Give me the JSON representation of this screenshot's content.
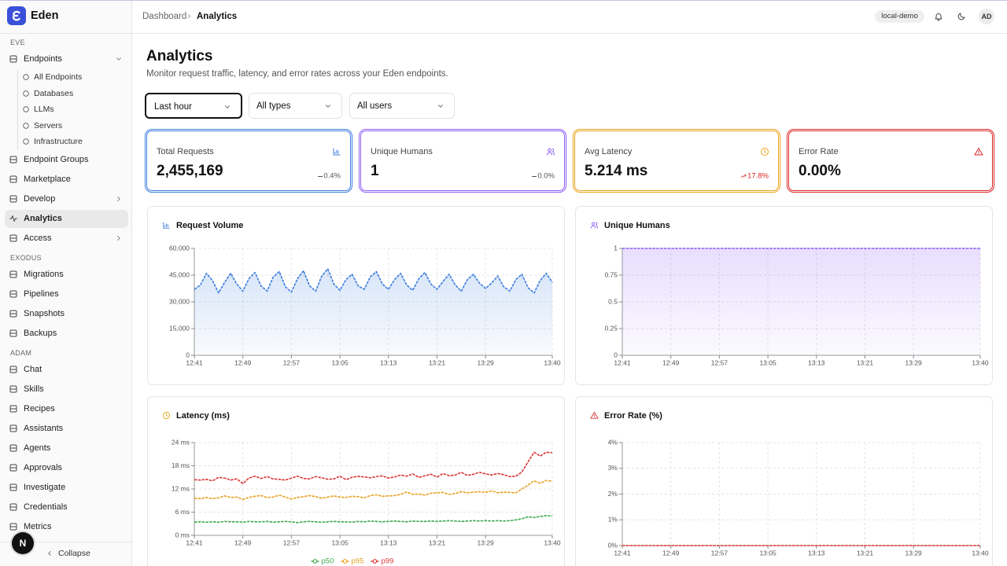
{
  "sidebar": {
    "brand": "Eden",
    "sections": [
      {
        "label": "EVE",
        "items": [
          {
            "label": "Endpoints",
            "expanded": true,
            "children": [
              "All Endpoints",
              "Databases",
              "LLMs",
              "Servers",
              "Infrastructure"
            ]
          },
          {
            "label": "Endpoint Groups"
          },
          {
            "label": "Marketplace"
          },
          {
            "label": "Develop",
            "submenu": true
          },
          {
            "label": "Analytics",
            "active": true
          },
          {
            "label": "Access",
            "submenu": true
          }
        ]
      },
      {
        "label": "EXODUS",
        "items": [
          {
            "label": "Migrations"
          },
          {
            "label": "Pipelines"
          },
          {
            "label": "Snapshots"
          },
          {
            "label": "Backups"
          }
        ]
      },
      {
        "label": "ADAM",
        "items": [
          {
            "label": "Chat"
          },
          {
            "label": "Skills"
          },
          {
            "label": "Recipes"
          },
          {
            "label": "Assistants"
          },
          {
            "label": "Agents"
          },
          {
            "label": "Approvals"
          },
          {
            "label": "Investigate"
          },
          {
            "label": "Credentials"
          },
          {
            "label": "Metrics"
          }
        ]
      }
    ],
    "collapse": "Collapse",
    "dev_badge": "N"
  },
  "header": {
    "breadcrumb": [
      "Dashboard",
      "Analytics"
    ],
    "environment": "local-demo",
    "avatar": "AD"
  },
  "page": {
    "title": "Analytics",
    "subtitle": "Monitor request traffic, latency, and error rates across your Eden endpoints."
  },
  "filters": [
    "Last hour",
    "All types",
    "All users"
  ],
  "stats": [
    {
      "label": "Total Requests",
      "value": "2,455,169",
      "change": "0.4%",
      "trend": "flat",
      "color": "#3b7ddd"
    },
    {
      "label": "Unique Humans",
      "value": "1",
      "change": "0.0%",
      "trend": "flat",
      "color": "#8b5cf6"
    },
    {
      "label": "Avg Latency",
      "value": "5.214 ms",
      "change": "17.8%",
      "trend": "up",
      "color": "#e8a317"
    },
    {
      "label": "Error Rate",
      "value": "0.00%",
      "color": "#dc2626"
    }
  ],
  "chart_data": [
    {
      "type": "area",
      "title": "Request Volume",
      "color": "#3b7ddd",
      "grid": true,
      "categories": [
        "12:41",
        null,
        null,
        null,
        null,
        null,
        null,
        null,
        "12:49",
        null,
        null,
        null,
        null,
        null,
        null,
        null,
        "12:57",
        null,
        null,
        null,
        null,
        null,
        null,
        null,
        "13:05",
        null,
        null,
        null,
        null,
        null,
        null,
        null,
        "13:13",
        null,
        null,
        null,
        null,
        null,
        null,
        null,
        "13:21",
        null,
        null,
        null,
        null,
        null,
        null,
        null,
        "13:29",
        null,
        null,
        null,
        null,
        null,
        null,
        null,
        null,
        null,
        null,
        "13:40"
      ],
      "values": [
        37000,
        39500,
        46000,
        42000,
        35000,
        41000,
        46000,
        40000,
        36000,
        43000,
        46500,
        39000,
        36000,
        44000,
        47000,
        38500,
        35500,
        43000,
        47500,
        39000,
        36000,
        44500,
        48500,
        40000,
        36500,
        42500,
        45500,
        39000,
        37000,
        44000,
        47000,
        40000,
        37000,
        42500,
        46000,
        39500,
        36500,
        43000,
        46500,
        40000,
        37000,
        41500,
        45500,
        39500,
        36000,
        42500,
        45500,
        40500,
        37500,
        40500,
        44500,
        38500,
        36000,
        42500,
        45500,
        38000,
        35000,
        42000,
        46000,
        41000
      ],
      "ylim": [
        0,
        60000
      ],
      "yticks": [
        0,
        {
          "value": 15000,
          "label": "15,000"
        },
        {
          "value": 30000,
          "label": "30,000"
        },
        {
          "value": 45000,
          "label": "45,000"
        },
        {
          "value": 60000,
          "label": "60,000"
        }
      ]
    },
    {
      "type": "area",
      "title": "Unique Humans",
      "color": "#8b5cf6",
      "grid": true,
      "categories": [
        "12:41",
        null,
        null,
        null,
        null,
        null,
        null,
        null,
        "12:49",
        null,
        null,
        null,
        null,
        null,
        null,
        null,
        "12:57",
        null,
        null,
        null,
        null,
        null,
        null,
        null,
        "13:05",
        null,
        null,
        null,
        null,
        null,
        null,
        null,
        "13:13",
        null,
        null,
        null,
        null,
        null,
        null,
        null,
        "13:21",
        null,
        null,
        null,
        null,
        null,
        null,
        null,
        "13:29",
        null,
        null,
        null,
        null,
        null,
        null,
        null,
        null,
        null,
        null,
        "13:40"
      ],
      "values": [
        1,
        1,
        1,
        1,
        1,
        1,
        1,
        1,
        1,
        1,
        1,
        1,
        1,
        1,
        1,
        1,
        1,
        1,
        1,
        1,
        1,
        1,
        1,
        1,
        1,
        1,
        1,
        1,
        1,
        1,
        1,
        1,
        1,
        1,
        1,
        1,
        1,
        1,
        1,
        1,
        1,
        1,
        1,
        1,
        1,
        1,
        1,
        1,
        1,
        1,
        1,
        1,
        1,
        1,
        1,
        1,
        1,
        1,
        1,
        1
      ],
      "ylim": [
        0,
        1
      ],
      "yticks": [
        0,
        0.25,
        0.5,
        0.75,
        1
      ]
    },
    {
      "type": "line",
      "title": "Latency (ms)",
      "grid": true,
      "legend": "bottom",
      "categories": [
        "12:41",
        null,
        null,
        null,
        null,
        null,
        null,
        null,
        "12:49",
        null,
        null,
        null,
        null,
        null,
        null,
        null,
        "12:57",
        null,
        null,
        null,
        null,
        null,
        null,
        null,
        "13:05",
        null,
        null,
        null,
        null,
        null,
        null,
        null,
        "13:13",
        null,
        null,
        null,
        null,
        null,
        null,
        null,
        "13:21",
        null,
        null,
        null,
        null,
        null,
        null,
        null,
        "13:29",
        null,
        null,
        null,
        null,
        null,
        null,
        null,
        null,
        null,
        null,
        "13:40"
      ],
      "series": [
        {
          "name": "p50",
          "color": "#3aa84a",
          "values": [
            3.4,
            3.5,
            3.4,
            3.5,
            3.4,
            3.6,
            3.5,
            3.5,
            3.4,
            3.6,
            3.5,
            3.5,
            3.6,
            3.4,
            3.5,
            3.6,
            3.5,
            3.3,
            3.5,
            3.6,
            3.5,
            3.4,
            3.5,
            3.6,
            3.5,
            3.5,
            3.4,
            3.6,
            3.5,
            3.7,
            3.6,
            3.5,
            3.6,
            3.7,
            3.6,
            3.5,
            3.7,
            3.6,
            3.6,
            3.7,
            3.6,
            3.7,
            3.8,
            3.7,
            3.6,
            3.7,
            3.8,
            3.7,
            3.8,
            3.7,
            3.8,
            3.7,
            3.8,
            4.0,
            4.3,
            4.8,
            4.6,
            4.9,
            5.1,
            5.0
          ]
        },
        {
          "name": "p95",
          "color": "#e8a020",
          "values": [
            9.6,
            9.5,
            9.8,
            9.5,
            9.7,
            10.2,
            9.8,
            9.9,
            9.3,
            9.8,
            10.1,
            10.3,
            9.8,
            9.9,
            10.4,
            9.9,
            9.4,
            9.8,
            10.0,
            10.3,
            10.0,
            9.6,
            9.9,
            10.2,
            9.9,
            9.8,
            10.1,
            10.0,
            9.7,
            10.3,
            10.5,
            10.1,
            10.2,
            10.3,
            10.6,
            11.2,
            10.6,
            10.7,
            10.4,
            10.9,
            11.0,
            11.1,
            10.6,
            10.8,
            11.3,
            11.0,
            11.2,
            11.3,
            11.1,
            11.5,
            11.0,
            11.2,
            11.1,
            11.0,
            12.0,
            13.0,
            14.1,
            13.5,
            14.2,
            14.0
          ]
        },
        {
          "name": "p99",
          "color": "#dc3535",
          "values": [
            14.4,
            14.3,
            14.5,
            14.1,
            15.0,
            14.8,
            14.3,
            14.6,
            13.4,
            14.8,
            15.3,
            14.7,
            15.2,
            14.6,
            14.5,
            14.3,
            14.8,
            15.3,
            14.7,
            14.6,
            15.2,
            14.9,
            14.5,
            14.6,
            15.3,
            14.4,
            15.0,
            15.3,
            15.1,
            14.9,
            15.2,
            15.4,
            14.8,
            15.1,
            15.6,
            15.3,
            15.9,
            15.0,
            15.4,
            15.8,
            15.1,
            16.0,
            15.4,
            15.6,
            16.3,
            15.5,
            15.8,
            16.3,
            15.9,
            15.6,
            16.0,
            15.7,
            15.2,
            15.3,
            16.4,
            19.0,
            21.5,
            20.5,
            21.5,
            21.4
          ]
        }
      ],
      "ylim": [
        0,
        24
      ],
      "yticks": [
        {
          "value": 0,
          "label": "0 ms"
        },
        {
          "value": 6,
          "label": "6 ms"
        },
        {
          "value": 12,
          "label": "12 ms"
        },
        {
          "value": 18,
          "label": "18 ms"
        },
        {
          "value": 24,
          "label": "24 ms"
        }
      ]
    },
    {
      "type": "line",
      "title": "Error Rate (%)",
      "color": "#dc3535",
      "grid": true,
      "categories": [
        "12:41",
        null,
        null,
        null,
        null,
        null,
        null,
        null,
        "12:49",
        null,
        null,
        null,
        null,
        null,
        null,
        null,
        "12:57",
        null,
        null,
        null,
        null,
        null,
        null,
        null,
        "13:05",
        null,
        null,
        null,
        null,
        null,
        null,
        null,
        "13:13",
        null,
        null,
        null,
        null,
        null,
        null,
        null,
        "13:21",
        null,
        null,
        null,
        null,
        null,
        null,
        null,
        "13:29",
        null,
        null,
        null,
        null,
        null,
        null,
        null,
        null,
        null,
        null,
        "13:40"
      ],
      "values": [
        0,
        0,
        0,
        0,
        0,
        0,
        0,
        0,
        0,
        0,
        0,
        0,
        0,
        0,
        0,
        0,
        0,
        0,
        0,
        0,
        0,
        0,
        0,
        0,
        0,
        0,
        0,
        0,
        0,
        0,
        0,
        0,
        0,
        0,
        0,
        0,
        0,
        0,
        0,
        0,
        0,
        0,
        0,
        0,
        0,
        0,
        0,
        0,
        0,
        0,
        0,
        0,
        0,
        0,
        0,
        0,
        0,
        0,
        0,
        0
      ],
      "ylim": [
        0,
        4
      ],
      "yticks": [
        {
          "value": 0,
          "label": "0%"
        },
        {
          "value": 1,
          "label": "1%"
        },
        {
          "value": 2,
          "label": "2%"
        },
        {
          "value": 3,
          "label": "3%"
        },
        {
          "value": 4,
          "label": "4%"
        }
      ]
    }
  ]
}
